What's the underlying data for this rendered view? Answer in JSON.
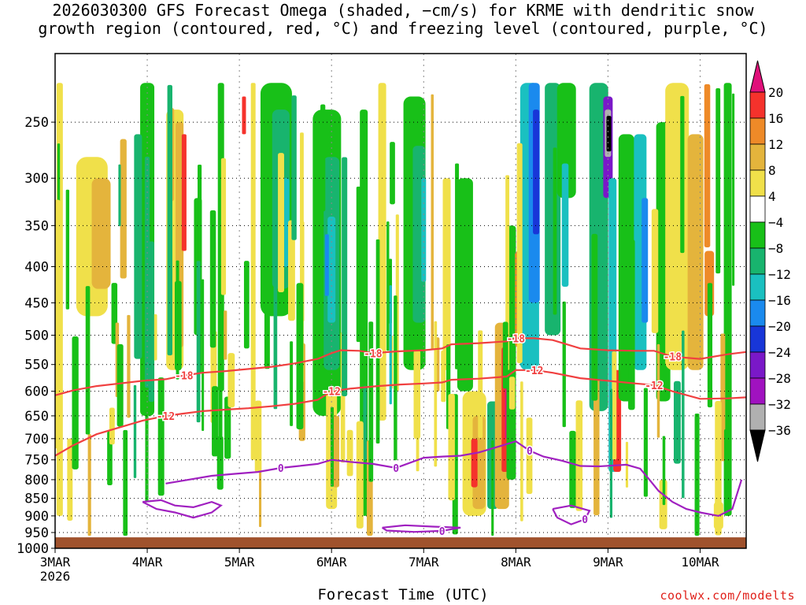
{
  "title": {
    "line1": "2026030300 GFS Forecast Omega (shaded, −cm/s) for KRME with dendritic snow",
    "line2": "growth region (contoured, red, °C) and freezing level (contoured, purple, °C)"
  },
  "credit": "coolwx.com/modelts",
  "chart_data": {
    "type": "heatmap",
    "xlabel": "Forecast Time (UTC)",
    "x_ticks": [
      "3MAR",
      "4MAR",
      "5MAR",
      "6MAR",
      "7MAR",
      "8MAR",
      "9MAR",
      "10MAR"
    ],
    "x_year": "2026",
    "xlim_days": [
      0,
      7.5
    ],
    "y_ticks": [
      250,
      300,
      350,
      400,
      450,
      500,
      550,
      600,
      650,
      700,
      750,
      800,
      850,
      900,
      950,
      1000
    ],
    "ylim_hpa": [
      200,
      1000
    ],
    "y_log_scale": true,
    "grid": true,
    "colorbar": {
      "labels": [
        "20",
        "16",
        "12",
        "8",
        "4",
        "−4",
        "−8",
        "−12",
        "−16",
        "−20",
        "−24",
        "−28",
        "−32",
        "−36"
      ],
      "colors": [
        "#e0107a",
        "#f5322c",
        "#ee8a28",
        "#e4b43c",
        "#f0e04a",
        "#ffffff",
        "#18c018",
        "#18b46e",
        "#1ac0c0",
        "#1a8aee",
        "#1836d8",
        "#7a18c8",
        "#a012c0",
        "#b0b0b0",
        "#000000"
      ]
    },
    "series": [
      {
        "name": "-18",
        "color": "#f04040",
        "points": [
          [
            0.0,
            608
          ],
          [
            0.2,
            598
          ],
          [
            0.45,
            590
          ],
          [
            0.7,
            585
          ],
          [
            0.95,
            580
          ],
          [
            1.2,
            577
          ],
          [
            1.4,
            570
          ],
          [
            1.6,
            565
          ],
          [
            1.85,
            562
          ],
          [
            2.1,
            558
          ],
          [
            2.35,
            554
          ],
          [
            2.6,
            548
          ],
          [
            2.85,
            540
          ],
          [
            3.0,
            530
          ],
          [
            3.1,
            525
          ],
          [
            3.3,
            526
          ],
          [
            3.45,
            530
          ],
          [
            3.7,
            527
          ],
          [
            4.0,
            525
          ],
          [
            4.2,
            522
          ],
          [
            4.3,
            515
          ],
          [
            4.6,
            513
          ],
          [
            4.9,
            510
          ],
          [
            5.0,
            505
          ],
          [
            5.2,
            505
          ],
          [
            5.4,
            508
          ],
          [
            5.7,
            522
          ],
          [
            6.0,
            525
          ],
          [
            6.3,
            526
          ],
          [
            6.5,
            526
          ],
          [
            6.7,
            536
          ],
          [
            7.0,
            540
          ],
          [
            7.3,
            532
          ],
          [
            7.5,
            528
          ]
        ],
        "labels": [
          [
            1.5,
            "-18"
          ],
          [
            3.5,
            "-18"
          ],
          [
            5.1,
            "-18"
          ],
          [
            6.7,
            "-18"
          ]
        ]
      },
      {
        "name": "-12",
        "color": "#f04040",
        "points": [
          [
            0.0,
            740
          ],
          [
            0.2,
            715
          ],
          [
            0.45,
            690
          ],
          [
            0.7,
            675
          ],
          [
            0.95,
            660
          ],
          [
            1.2,
            650
          ],
          [
            1.4,
            645
          ],
          [
            1.6,
            640
          ],
          [
            1.85,
            637
          ],
          [
            2.1,
            634
          ],
          [
            2.35,
            630
          ],
          [
            2.6,
            625
          ],
          [
            2.85,
            617
          ],
          [
            3.0,
            600
          ],
          [
            3.2,
            595
          ],
          [
            3.5,
            590
          ],
          [
            3.75,
            587
          ],
          [
            4.0,
            585
          ],
          [
            4.2,
            583
          ],
          [
            4.3,
            578
          ],
          [
            4.6,
            576
          ],
          [
            4.9,
            572
          ],
          [
            5.0,
            560
          ],
          [
            5.2,
            560
          ],
          [
            5.4,
            565
          ],
          [
            5.7,
            575
          ],
          [
            6.0,
            580
          ],
          [
            6.3,
            585
          ],
          [
            6.5,
            588
          ],
          [
            6.7,
            600
          ],
          [
            7.0,
            615
          ],
          [
            7.3,
            614
          ],
          [
            7.5,
            612
          ]
        ],
        "labels": [
          [
            1.2,
            "-12"
          ],
          [
            3.1,
            "-12"
          ],
          [
            5.15,
            "-12"
          ],
          [
            6.6,
            "-12"
          ]
        ]
      },
      {
        "name": "0",
        "color": "#a020c0",
        "points": [
          [
            1.2,
            810
          ],
          [
            1.45,
            800
          ],
          [
            1.7,
            790
          ],
          [
            1.95,
            785
          ],
          [
            2.2,
            780
          ],
          [
            2.45,
            770
          ],
          [
            2.65,
            765
          ],
          [
            2.85,
            760
          ],
          [
            3.0,
            750
          ],
          [
            3.2,
            755
          ],
          [
            3.45,
            760
          ],
          [
            3.7,
            770
          ],
          [
            4.0,
            745
          ],
          [
            4.2,
            742
          ],
          [
            4.4,
            740
          ],
          [
            4.6,
            732
          ],
          [
            4.85,
            716
          ],
          [
            5.0,
            706
          ],
          [
            5.15,
            728
          ],
          [
            5.3,
            742
          ],
          [
            5.5,
            752
          ],
          [
            5.7,
            765
          ],
          [
            5.9,
            766
          ],
          [
            6.05,
            764
          ],
          [
            6.2,
            762
          ],
          [
            6.35,
            772
          ],
          [
            6.45,
            800
          ],
          [
            6.55,
            830
          ],
          [
            6.7,
            860
          ],
          [
            6.85,
            880
          ],
          [
            7.0,
            890
          ],
          [
            7.2,
            900
          ],
          [
            7.35,
            880
          ],
          [
            7.45,
            800
          ]
        ],
        "labels": [
          [
            2.4,
            "0"
          ],
          [
            3.8,
            "0"
          ],
          [
            5.1,
            "0"
          ]
        ]
      },
      {
        "name": "0",
        "color": "#a020c0",
        "points": [
          [
            0.95,
            860
          ],
          [
            1.1,
            880
          ],
          [
            1.3,
            890
          ],
          [
            1.5,
            905
          ],
          [
            1.7,
            890
          ],
          [
            1.8,
            870
          ],
          [
            1.7,
            860
          ],
          [
            1.5,
            875
          ],
          [
            1.3,
            870
          ],
          [
            1.15,
            855
          ],
          [
            0.95,
            860
          ]
        ],
        "labels": []
      },
      {
        "name": "0",
        "color": "#a020c0",
        "points": [
          [
            3.55,
            935
          ],
          [
            3.8,
            928
          ],
          [
            4.1,
            932
          ],
          [
            4.4,
            935
          ],
          [
            4.2,
            945
          ],
          [
            3.9,
            948
          ],
          [
            3.6,
            944
          ],
          [
            3.55,
            935
          ]
        ],
        "labels": [
          [
            4.15,
            "0"
          ]
        ]
      },
      {
        "name": "0",
        "color": "#a020c0",
        "points": [
          [
            5.4,
            880
          ],
          [
            5.6,
            870
          ],
          [
            5.8,
            885
          ],
          [
            5.75,
            910
          ],
          [
            5.6,
            925
          ],
          [
            5.45,
            905
          ],
          [
            5.4,
            880
          ]
        ],
        "labels": [
          [
            5.72,
            "0"
          ]
        ]
      }
    ],
    "terrain": {
      "color": "#a0522d",
      "top_hpa": 965
    }
  }
}
